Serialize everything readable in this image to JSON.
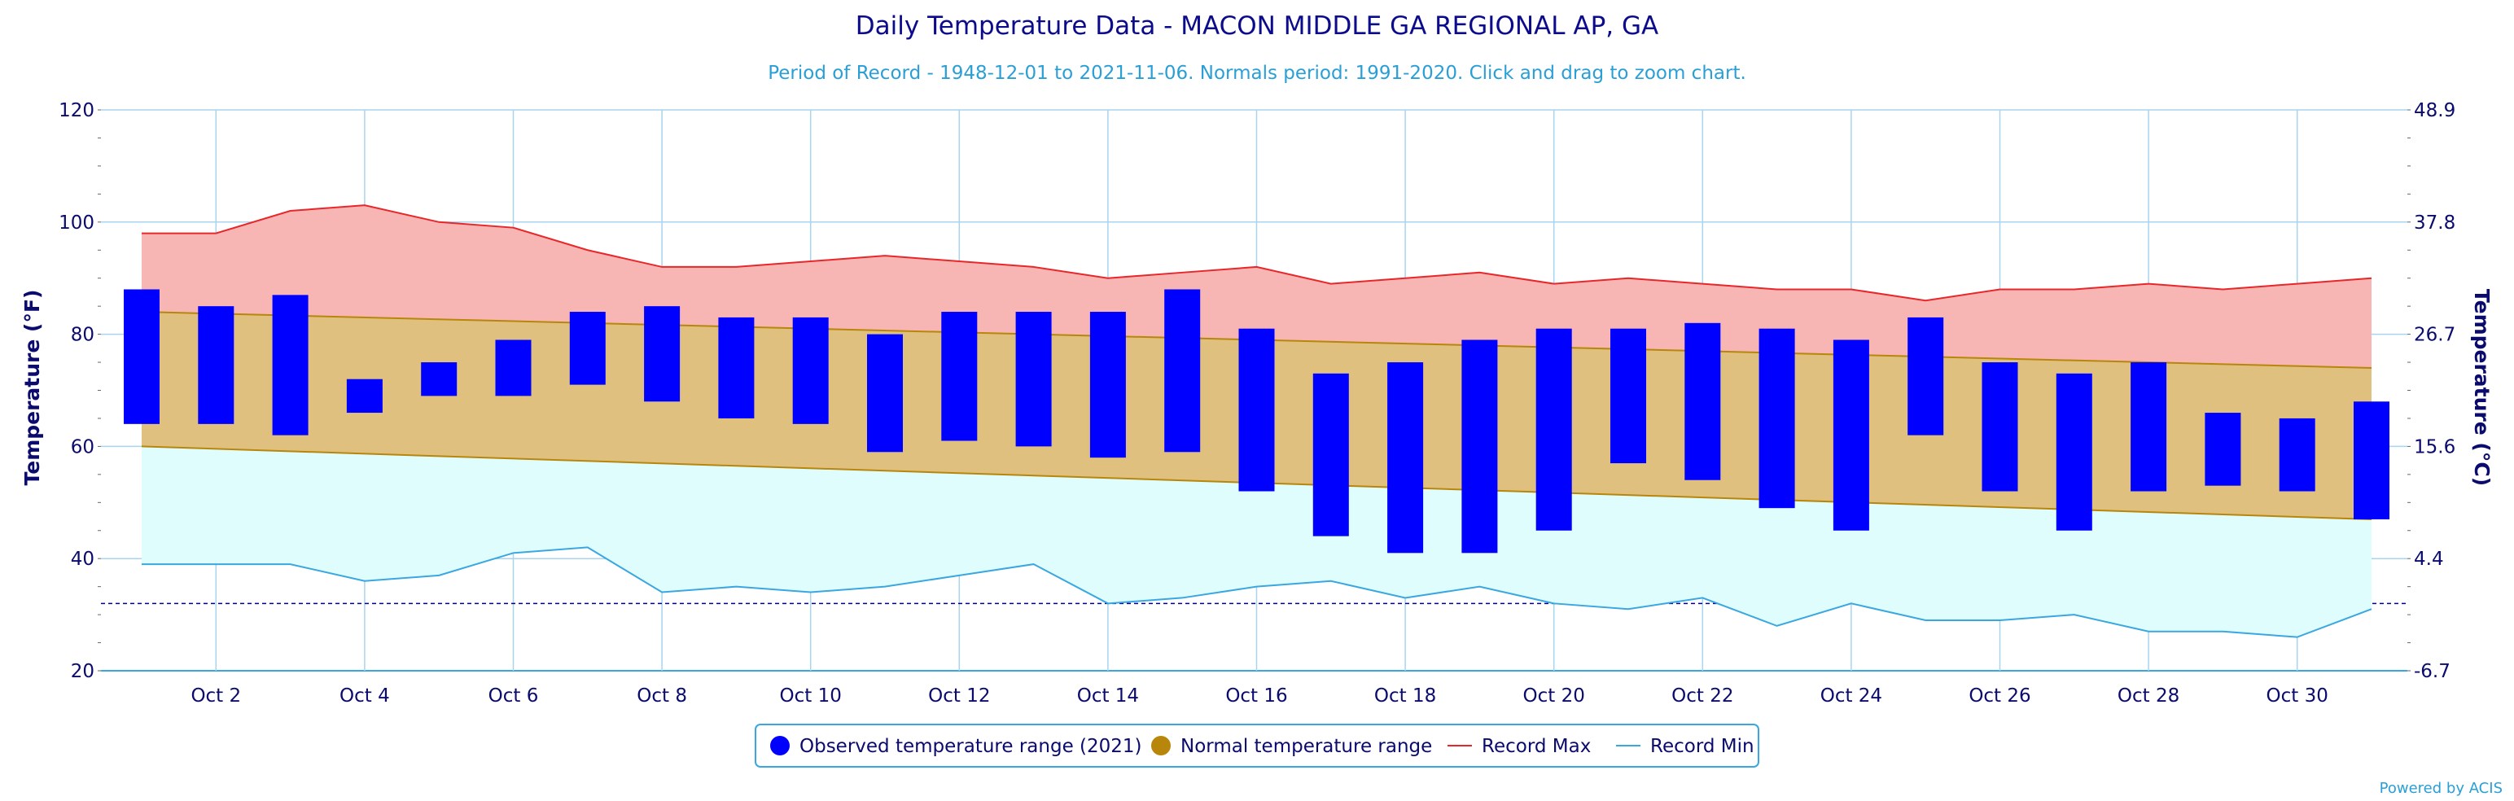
{
  "chart_data": {
    "type": "bar",
    "title": "Daily Temperature Data - MACON MIDDLE GA REGIONAL AP, GA",
    "subtitle": "Period of Record - 1948-12-01 to 2021-11-06. Normals period: 1991-2020. Click and drag to zoom chart.",
    "ylabel": "Temperature (°F)",
    "ylabel_right": "Temperature (°C)",
    "ylim": [
      20,
      120
    ],
    "y_ticks": [
      "20",
      "40",
      "60",
      "80",
      "100",
      "120"
    ],
    "y_ticks_right": [
      "-6.7",
      "4.4",
      "15.6",
      "26.7",
      "37.8",
      "48.9"
    ],
    "x_tick_labels": [
      "Oct 2",
      "Oct 4",
      "Oct 6",
      "Oct 8",
      "Oct 10",
      "Oct 12",
      "Oct 14",
      "Oct 16",
      "Oct 18",
      "Oct 20",
      "Oct 22",
      "Oct 24",
      "Oct 26",
      "Oct 28",
      "Oct 30"
    ],
    "x_tick_days": [
      2,
      4,
      6,
      8,
      10,
      12,
      14,
      16,
      18,
      20,
      22,
      24,
      26,
      28,
      30
    ],
    "days": [
      1,
      2,
      3,
      4,
      5,
      6,
      7,
      8,
      9,
      10,
      11,
      12,
      13,
      14,
      15,
      16,
      17,
      18,
      19,
      20,
      21,
      22,
      23,
      24,
      25,
      26,
      27,
      28,
      29,
      30,
      31
    ],
    "freezing_line": 32,
    "grid": true,
    "legend_position": "bottom-center",
    "series": [
      {
        "name": "Observed temperature range (2021)",
        "color": "#0000ff",
        "low": [
          64,
          64,
          62,
          66,
          69,
          69,
          71,
          68,
          65,
          64,
          59,
          61,
          60,
          58,
          59,
          52,
          44,
          41,
          41,
          45,
          57,
          54,
          49,
          45,
          62,
          52,
          45,
          52,
          53,
          52,
          47
        ],
        "high": [
          88,
          85,
          87,
          72,
          75,
          79,
          84,
          85,
          83,
          83,
          80,
          84,
          84,
          84,
          88,
          81,
          73,
          75,
          79,
          81,
          81,
          82,
          81,
          79,
          83,
          75,
          73,
          75,
          66,
          65,
          68
        ]
      },
      {
        "name": "Normal temperature range",
        "color": "#b8860b",
        "fill": "#dfc07f",
        "low_start": 60,
        "low_end": 47,
        "high_start": 84,
        "high_end": 74
      },
      {
        "name": "Record Max",
        "color": "#e8272a",
        "fill": "#f7b6b4",
        "values": [
          98,
          98,
          102,
          103,
          100,
          99,
          95,
          92,
          92,
          93,
          94,
          93,
          92,
          90,
          91,
          92,
          89,
          90,
          91,
          89,
          90,
          89,
          88,
          88,
          86,
          88,
          88,
          89,
          88,
          89,
          90
        ]
      },
      {
        "name": "Record Min",
        "color": "#3aa7e0",
        "fill": "#dffdfc",
        "values": [
          39,
          39,
          39,
          36,
          37,
          41,
          42,
          34,
          35,
          34,
          35,
          37,
          39,
          32,
          33,
          35,
          36,
          33,
          35,
          32,
          31,
          33,
          28,
          32,
          29,
          29,
          30,
          27,
          27,
          26,
          31
        ]
      }
    ],
    "credit": "Powered by ACIS"
  }
}
